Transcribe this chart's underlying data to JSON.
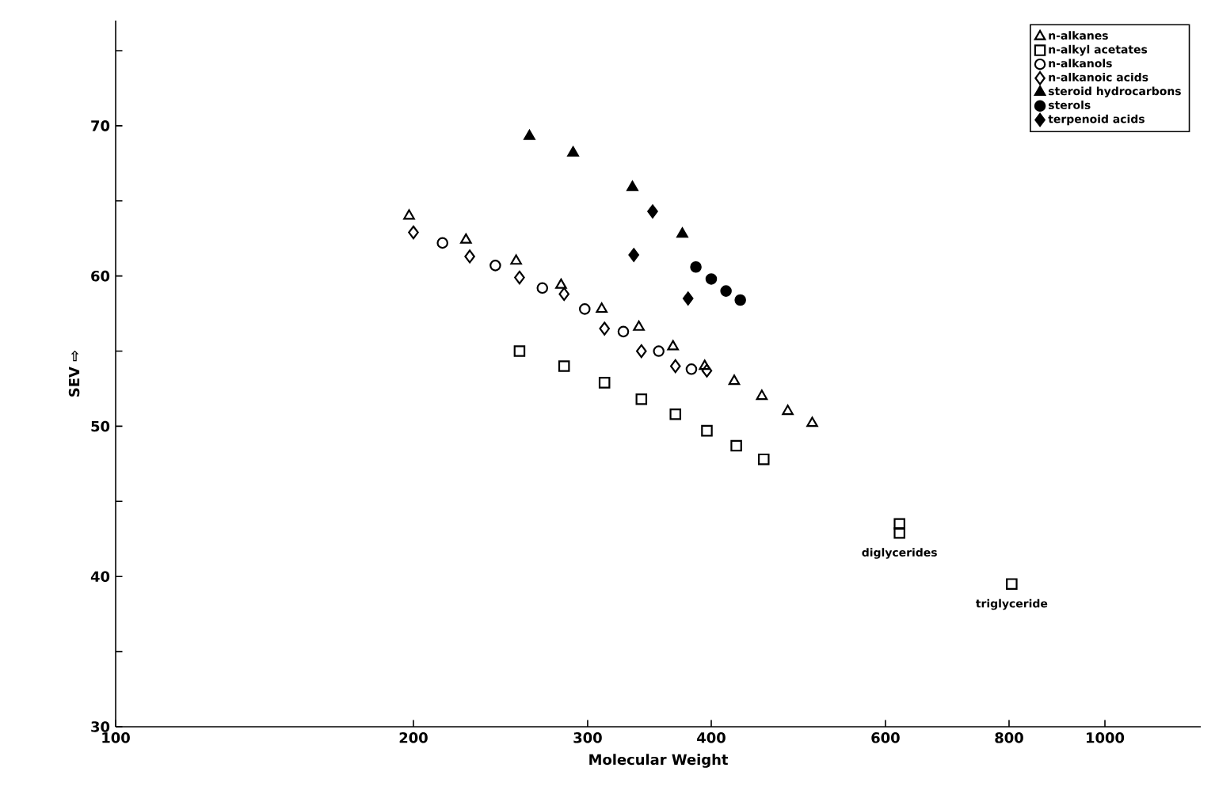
{
  "chart_data": {
    "type": "scatter",
    "xlabel": "Molecular Weight",
    "ylabel": "SEV ⇨",
    "log": "x",
    "xlim": [
      100,
      1250
    ],
    "xticks": [
      100,
      200,
      300,
      400,
      600,
      800,
      1000
    ],
    "ylim": [
      30,
      77
    ],
    "yticks": [
      30,
      {
        "value": 35,
        "label": null
      },
      40,
      {
        "value": 45,
        "label": null
      },
      50,
      {
        "value": 55,
        "label": null
      },
      60,
      {
        "value": 65,
        "label": null
      },
      70,
      {
        "value": 75,
        "label": null
      }
    ],
    "legend": "top right",
    "grid": false,
    "series": [
      {
        "name": "n-alkanes",
        "color": "#000000",
        "marker": "triangle-open",
        "x": [
          198,
          226,
          254,
          282,
          310,
          338,
          366,
          394,
          422,
          450,
          478,
          506
        ],
        "values": [
          64,
          62.4,
          61,
          59.4,
          57.8,
          56.6,
          55.3,
          54,
          53,
          52,
          51,
          50.2
        ]
      },
      {
        "name": "n-alkyl acetates",
        "color": "#000000",
        "marker": "square-open",
        "x": [
          256,
          284,
          312,
          340,
          368,
          396,
          424,
          452
        ],
        "values": [
          55,
          54,
          52.9,
          51.8,
          50.8,
          49.7,
          48.7,
          47.8
        ]
      },
      {
        "name": "n-alkanols",
        "color": "#000000",
        "marker": "circle-open",
        "x": [
          214,
          242,
          270,
          298,
          326,
          354,
          382
        ],
        "values": [
          62.2,
          60.7,
          59.2,
          57.8,
          56.3,
          55,
          53.8
        ]
      },
      {
        "name": "n-alkanoic acids",
        "color": "#000000",
        "marker": "diamond-open",
        "x": [
          200,
          228,
          256,
          284,
          312,
          340,
          368,
          396
        ],
        "values": [
          62.9,
          61.3,
          59.9,
          58.8,
          56.5,
          55,
          54,
          53.7
        ]
      },
      {
        "name": "steroid hydrocarbons",
        "color": "#000000",
        "marker": "triangle",
        "x": [
          262,
          290,
          333,
          374
        ],
        "values": [
          69.3,
          68.2,
          65.9,
          62.8
        ]
      },
      {
        "name": "sterols",
        "color": "#000000",
        "marker": "circle",
        "x": [
          386,
          400,
          414,
          428
        ],
        "values": [
          60.6,
          59.8,
          59,
          58.4
        ]
      },
      {
        "name": "terpenoid acids",
        "color": "#000000",
        "marker": "diamond",
        "x": [
          334,
          349,
          379
        ],
        "values": [
          61.4,
          64.3,
          58.5
        ]
      },
      {
        "color": "#000000",
        "marker": "square-open",
        "x": [
          620,
          620,
          805
        ],
        "values": [
          43.5,
          42.9,
          39.5
        ]
      }
    ],
    "annotations": [
      {
        "text": "diglycerides",
        "x": 620,
        "y": 42.9
      },
      {
        "text": "triglyceride",
        "x": 805,
        "y": 39.5
      }
    ]
  }
}
